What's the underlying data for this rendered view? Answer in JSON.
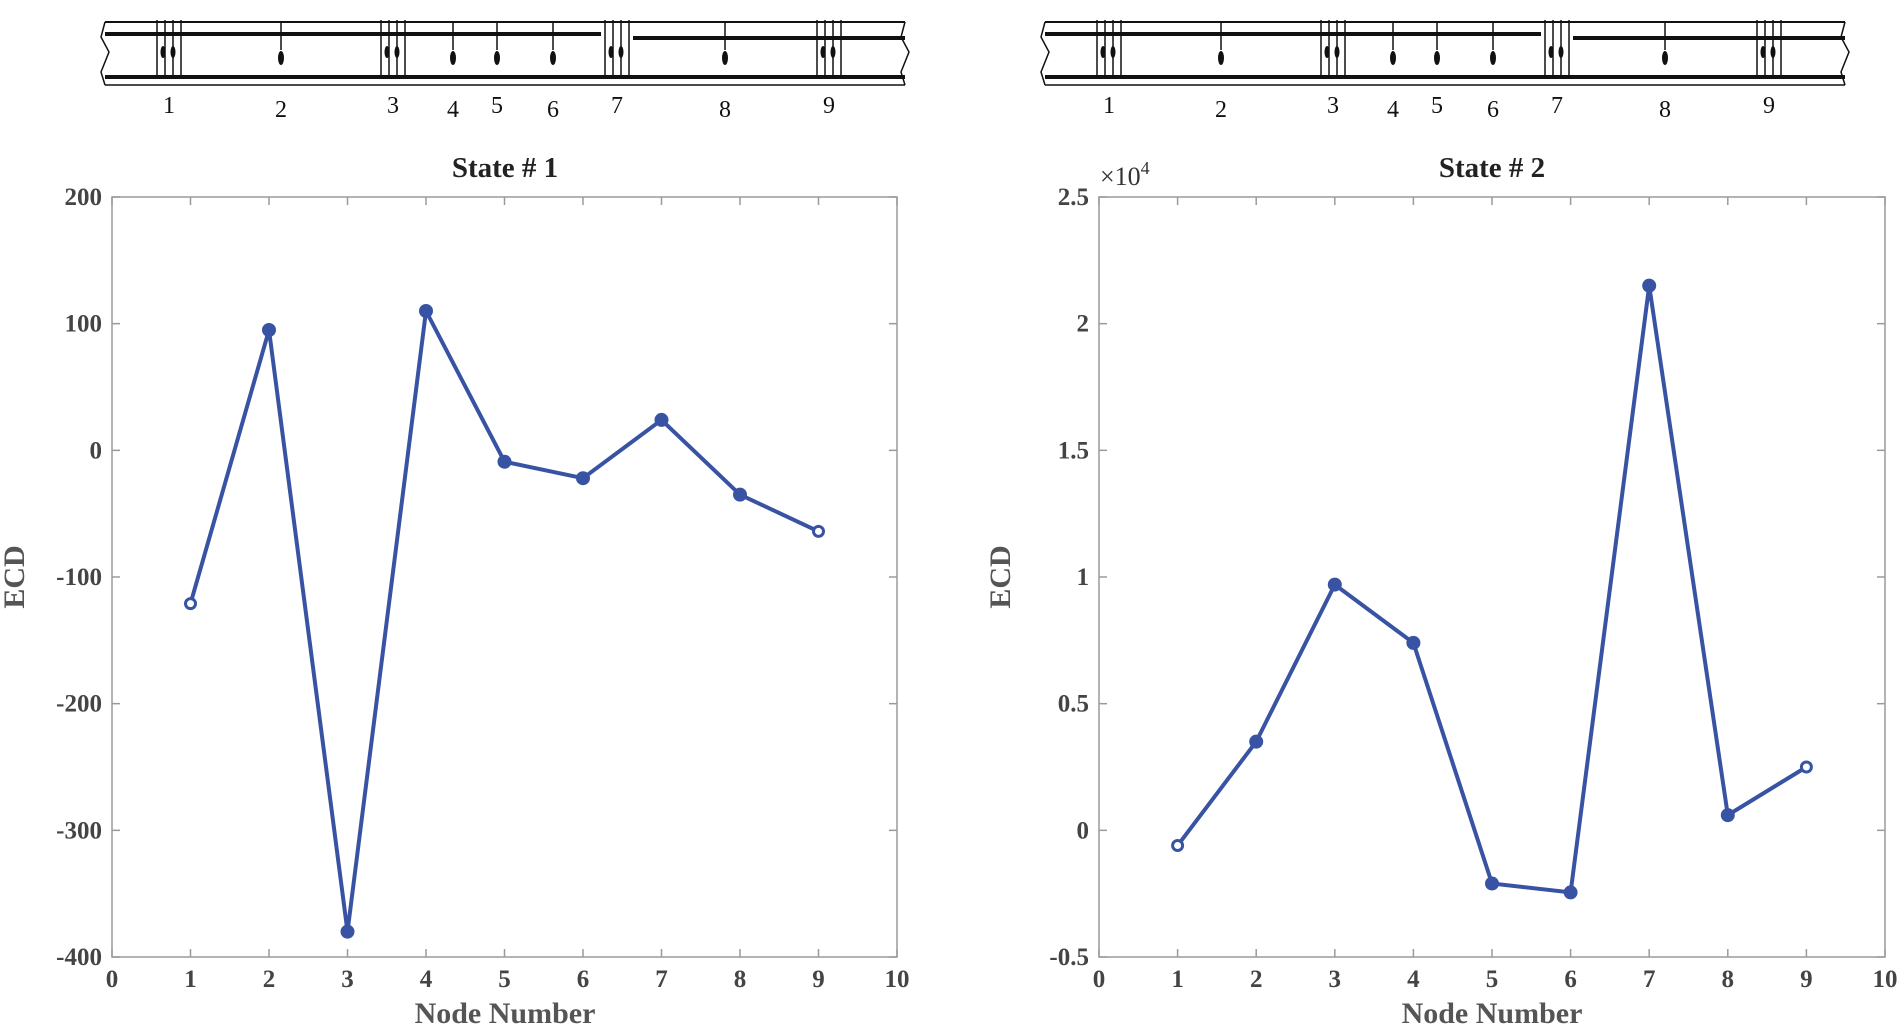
{
  "colors": {
    "series": "#3953a4",
    "axis": "#9a9a9a",
    "ink": "#111111"
  },
  "chart_data": [
    {
      "type": "line",
      "title": "State # 1",
      "xlabel": "Node Number",
      "ylabel": "ECD",
      "xlim": [
        0,
        10
      ],
      "ylim": [
        -400,
        200
      ],
      "xticks": [
        "0",
        "1",
        "2",
        "3",
        "4",
        "5",
        "6",
        "7",
        "8",
        "9",
        "10"
      ],
      "yticks": [
        "200",
        "100",
        "0",
        "-100",
        "-200",
        "-300",
        "-400"
      ],
      "exponent_label": "",
      "x": [
        1,
        2,
        3,
        4,
        5,
        6,
        7,
        8,
        9
      ],
      "series": [
        {
          "name": "ECD",
          "values": [
            -121,
            95,
            -380,
            110,
            -9,
            -22,
            24,
            -35,
            -64
          ]
        }
      ],
      "endpoint_markers": "hollow",
      "inner_markers": "filled",
      "node_labels": [
        "1",
        "2",
        "3",
        "4",
        "5",
        "6",
        "7",
        "8",
        "9"
      ]
    },
    {
      "type": "line",
      "title": "State # 2",
      "xlabel": "Node Number",
      "ylabel": "ECD",
      "xlim": [
        0,
        10
      ],
      "ylim": [
        -5000,
        25000
      ],
      "xticks": [
        "0",
        "1",
        "2",
        "3",
        "4",
        "5",
        "6",
        "7",
        "8",
        "9",
        "10"
      ],
      "yticks": [
        "2.5",
        "2",
        "1.5",
        "1",
        "0.5",
        "0",
        "-0.5"
      ],
      "exponent_label": "×10",
      "exponent_power": "4",
      "x": [
        1,
        2,
        3,
        4,
        5,
        6,
        7,
        8,
        9
      ],
      "series": [
        {
          "name": "ECD",
          "values": [
            -600,
            3500,
            9700,
            7400,
            -2100,
            -2450,
            21500,
            600,
            2500
          ]
        }
      ],
      "endpoint_markers": "hollow",
      "inner_markers": "filled",
      "node_labels": [
        "1",
        "2",
        "3",
        "4",
        "5",
        "6",
        "7",
        "8",
        "9"
      ]
    }
  ]
}
